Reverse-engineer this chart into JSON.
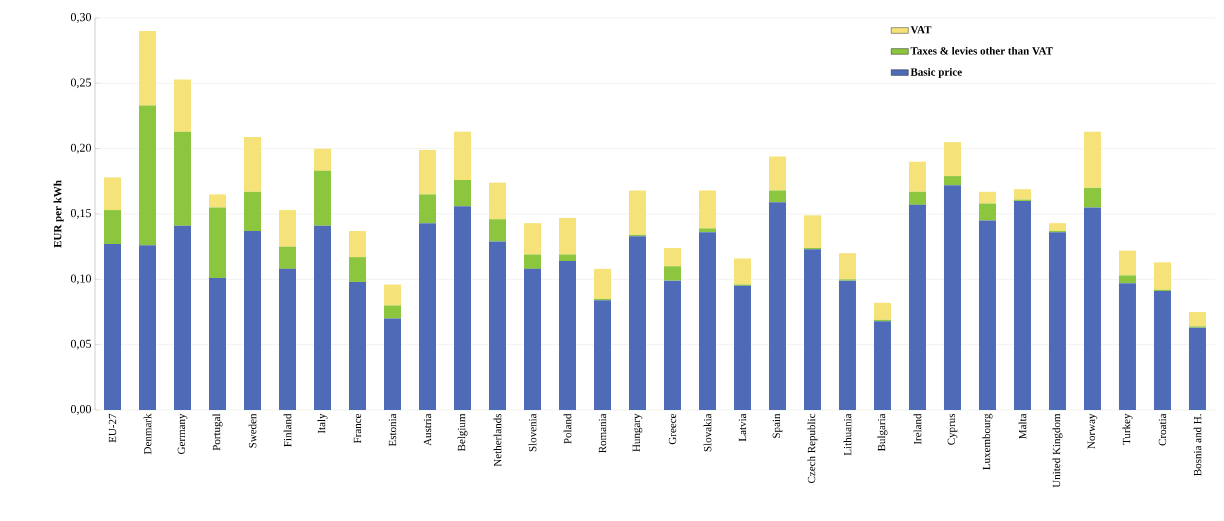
{
  "chart_data": {
    "type": "bar",
    "stacked": true,
    "ylabel": "EUR per kWh",
    "categories": [
      "EU-27",
      "Denmark",
      "Germany",
      "Portugal",
      "Sweden",
      "Finland",
      "Italy",
      "France",
      "Estonia",
      "Austria",
      "Belgium",
      "Netherlands",
      "Slovenia",
      "Poland",
      "Romania",
      "Hungary",
      "Greece",
      "Slovakia",
      "Latvia",
      "Spain",
      "Czech Republic",
      "Lithuania",
      "Bulgaria",
      "Ireland",
      "Cyprus",
      "Luxembourg",
      "Malta",
      "United Kingdom",
      "Norway",
      "Turkey",
      "Croatia",
      "Bosnia and H."
    ],
    "series": [
      {
        "name": "Basic price",
        "color": "#4f6bb8",
        "values": [
          0.127,
          0.126,
          0.141,
          0.101,
          0.137,
          0.108,
          0.141,
          0.098,
          0.07,
          0.143,
          0.156,
          0.129,
          0.108,
          0.114,
          0.084,
          0.133,
          0.099,
          0.136,
          0.095,
          0.159,
          0.123,
          0.099,
          0.068,
          0.157,
          0.172,
          0.145,
          0.16,
          0.136,
          0.155,
          0.097,
          0.091,
          0.063
        ]
      },
      {
        "name": "Taxes & levies other than VAT",
        "color": "#8cc63f",
        "values": [
          0.026,
          0.107,
          0.072,
          0.054,
          0.03,
          0.017,
          0.042,
          0.019,
          0.01,
          0.022,
          0.02,
          0.017,
          0.011,
          0.005,
          0.001,
          0.001,
          0.011,
          0.003,
          0.001,
          0.009,
          0.001,
          0.001,
          0.001,
          0.01,
          0.007,
          0.013,
          0.001,
          0.001,
          0.015,
          0.006,
          0.001,
          0.001
        ]
      },
      {
        "name": "VAT",
        "color": "#f5e37a",
        "values": [
          0.025,
          0.057,
          0.04,
          0.01,
          0.042,
          0.028,
          0.017,
          0.02,
          0.016,
          0.034,
          0.037,
          0.028,
          0.024,
          0.028,
          0.023,
          0.034,
          0.014,
          0.029,
          0.02,
          0.026,
          0.025,
          0.02,
          0.013,
          0.023,
          0.026,
          0.009,
          0.008,
          0.006,
          0.043,
          0.019,
          0.021,
          0.011
        ]
      }
    ],
    "ylim": [
      0,
      0.3
    ],
    "yticks": [
      {
        "value": 0,
        "label": "0,00"
      },
      {
        "value": 0.05,
        "label": "0,05"
      },
      {
        "value": 0.1,
        "label": "0,10"
      },
      {
        "value": 0.15,
        "label": "0,15"
      },
      {
        "value": 0.2,
        "label": "0,20"
      },
      {
        "value": 0.25,
        "label": "0,25"
      },
      {
        "value": 0.3,
        "label": "0,30"
      }
    ],
    "grid": "y",
    "legend": "top right"
  }
}
